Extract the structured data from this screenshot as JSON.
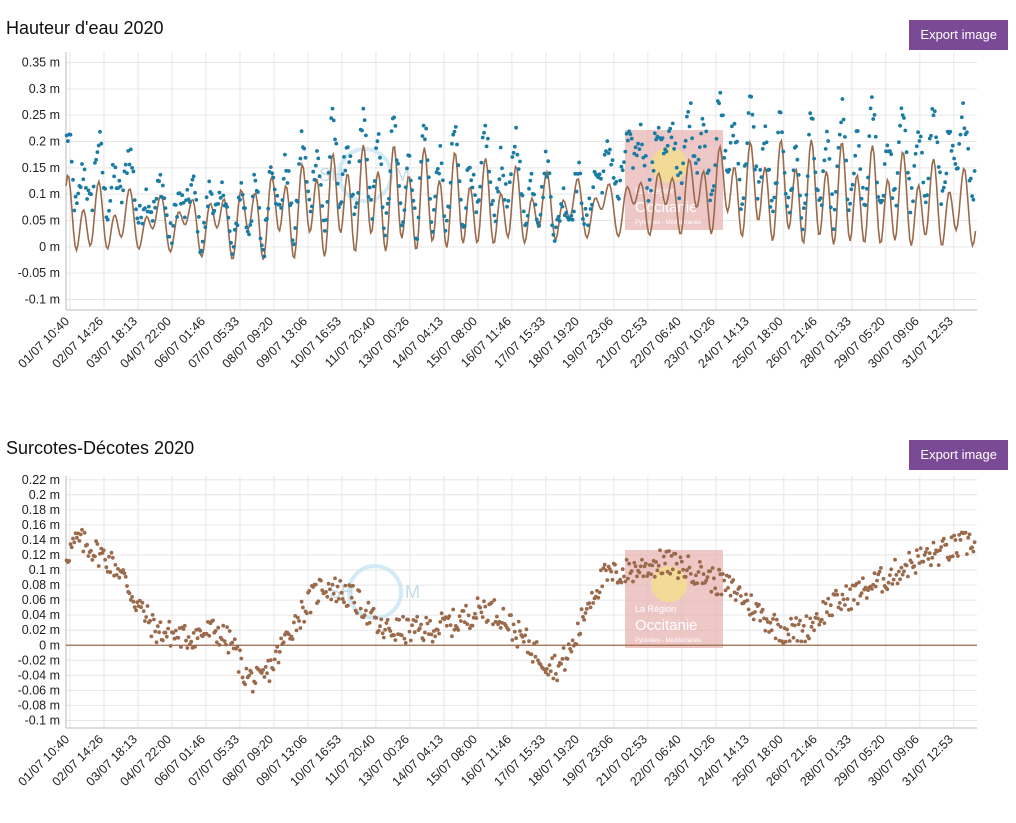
{
  "x_ticks": [
    "01/07 10:40",
    "02/07 14:26",
    "03/07 18:13",
    "04/07 22:00",
    "06/07 01:46",
    "07/07 05:33",
    "08/07 09:20",
    "09/07 13:06",
    "10/07 16:53",
    "11/07 20:40",
    "13/07 00:26",
    "14/07 04:13",
    "15/07 08:00",
    "16/07 11:46",
    "17/07 15:33",
    "18/07 19:20",
    "19/07 23:06",
    "21/07 02:53",
    "22/07 06:40",
    "23/07 10:26",
    "24/07 14:13",
    "25/07 18:00",
    "26/07 21:46",
    "28/07 01:33",
    "29/07 05:20",
    "30/07 09:06",
    "31/07 12:53"
  ],
  "watermark": {
    "shom_left": "SH",
    "shom_right": "M",
    "region_line1": "La Région",
    "region_line2": "Occitanie",
    "region_line3": "Pyrénées - Méditerranée"
  },
  "export_label": "Export image",
  "colors": {
    "observed": "#1a7ca3",
    "predicted": "#9b6a4b",
    "surcote": "#9b6a4b",
    "button": "#7a4a96",
    "grid": "#e6e6e6",
    "watermark_box": "#e8b4b4"
  },
  "chart_data": [
    {
      "type": "line",
      "title": "Hauteur d'eau 2020",
      "ylim": [
        -0.12,
        0.37
      ],
      "yticks": [
        "-0.1 m",
        "-0.05 m",
        "0 m",
        "0.05 m",
        "0.1 m",
        "0.15 m",
        "0.2 m",
        "0.25 m",
        "0.3 m",
        "0.35 m"
      ],
      "ytick_values": [
        -0.1,
        -0.05,
        0,
        0.05,
        0.1,
        0.15,
        0.2,
        0.25,
        0.3,
        0.35
      ],
      "x_range_days": [
        0,
        30.5
      ],
      "series": [
        {
          "type": "line",
          "tide": {
            "components": [
              {
                "amp": 0.055,
                "period_h": 12.42,
                "phase": 0.3
              },
              {
                "amp": 0.03,
                "period_h": 23.93,
                "phase": 1.1
              },
              {
                "amp": 0.025,
                "period_h": 12.0,
                "phase": 2.0
              }
            ],
            "mean": [
              [
                0,
                0.05
              ],
              [
                5,
                0.045
              ],
              [
                10,
                0.09
              ],
              [
                15,
                0.07
              ],
              [
                18,
                0.075
              ],
              [
                22,
                0.11
              ],
              [
                26,
                0.09
              ],
              [
                30.5,
                0.07
              ]
            ]
          }
        },
        {
          "type": "scatter",
          "offset_profile": [
            [
              0,
              0.08
            ],
            [
              2,
              0.08
            ],
            [
              3,
              0.01
            ],
            [
              5,
              0.01
            ],
            [
              6,
              -0.03
            ],
            [
              7,
              0.02
            ],
            [
              9,
              0.06
            ],
            [
              11,
              0.03
            ],
            [
              13,
              0.03
            ],
            [
              15,
              0.06
            ],
            [
              16,
              0.0
            ],
            [
              17,
              -0.03
            ],
            [
              18,
              0.06
            ],
            [
              19,
              0.1
            ],
            [
              21,
              0.1
            ],
            [
              23,
              0.07
            ],
            [
              24,
              0.02
            ],
            [
              25,
              0.03
            ],
            [
              27,
              0.07
            ],
            [
              29,
              0.1
            ],
            [
              30.5,
              0.13
            ]
          ]
        }
      ]
    },
    {
      "type": "scatter",
      "title": "Surcotes-Décotes 2020",
      "ylim": [
        -0.11,
        0.225
      ],
      "yticks": [
        "-0.1 m",
        "-0.08 m",
        "-0.06 m",
        "-0.04 m",
        "-0.02 m",
        "0 m",
        "0.02 m",
        "0.04 m",
        "0.06 m",
        "0.08 m",
        "0.1 m",
        "0.12 m",
        "0.14 m",
        "0.16 m",
        "0.18 m",
        "0.2 m",
        "0.22 m"
      ],
      "ytick_values": [
        -0.1,
        -0.08,
        -0.06,
        -0.04,
        -0.02,
        0,
        0.02,
        0.04,
        0.06,
        0.08,
        0.1,
        0.12,
        0.14,
        0.16,
        0.18,
        0.2,
        0.22
      ],
      "x_range_days": [
        0,
        30.5
      ],
      "series": [
        {
          "profile": [
            [
              0,
              0.12
            ],
            [
              0.4,
              0.14
            ],
            [
              1.2,
              0.12
            ],
            [
              1.8,
              0.1
            ],
            [
              2.3,
              0.06
            ],
            [
              3,
              0.02
            ],
            [
              4,
              0.01
            ],
            [
              5,
              0.02
            ],
            [
              5.6,
              0.0
            ],
            [
              6,
              -0.04
            ],
            [
              6.5,
              -0.05
            ],
            [
              7,
              -0.02
            ],
            [
              7.5,
              0.02
            ],
            [
              8,
              0.05
            ],
            [
              8.6,
              0.08
            ],
            [
              9.3,
              0.07
            ],
            [
              10,
              0.05
            ],
            [
              10.5,
              0.02
            ],
            [
              11,
              0.02
            ],
            [
              12,
              0.02
            ],
            [
              13,
              0.03
            ],
            [
              14,
              0.05
            ],
            [
              14.6,
              0.04
            ],
            [
              15,
              0.02
            ],
            [
              15.5,
              0.0
            ],
            [
              16,
              -0.02
            ],
            [
              16.5,
              -0.03
            ],
            [
              17,
              0.0
            ],
            [
              17.5,
              0.06
            ],
            [
              18,
              0.09
            ],
            [
              19,
              0.1
            ],
            [
              20,
              0.11
            ],
            [
              21,
              0.1
            ],
            [
              22,
              0.08
            ],
            [
              22.5,
              0.07
            ],
            [
              23,
              0.05
            ],
            [
              23.6,
              0.03
            ],
            [
              24,
              0.02
            ],
            [
              24.7,
              0.02
            ],
            [
              25.5,
              0.05
            ],
            [
              26.5,
              0.07
            ],
            [
              27.5,
              0.09
            ],
            [
              28.3,
              0.11
            ],
            [
              29,
              0.12
            ],
            [
              29.8,
              0.13
            ],
            [
              30.5,
              0.14
            ]
          ],
          "noise": 0.018
        }
      ]
    }
  ]
}
